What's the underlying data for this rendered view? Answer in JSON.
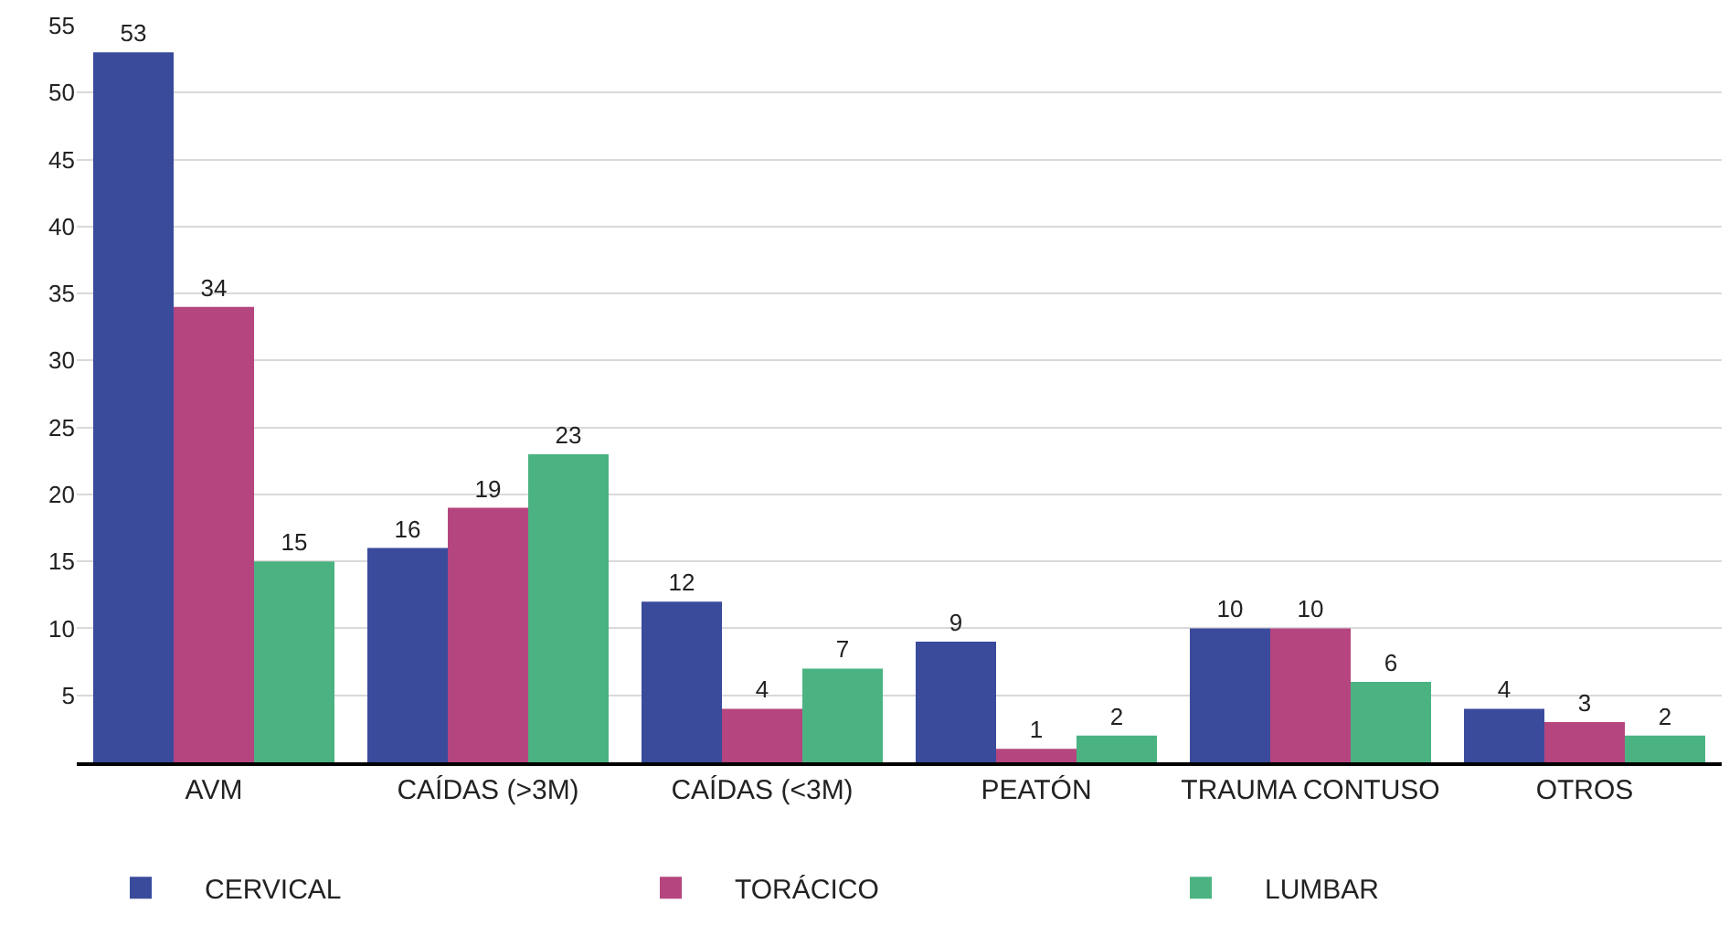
{
  "chart_data": {
    "type": "bar",
    "categories": [
      "AVM",
      "CAÍDAS (>3M)",
      "CAÍDAS (<3M)",
      "PEATÓN",
      "TRAUMA CONTUSO",
      "OTROS"
    ],
    "series": [
      {
        "name": "CERVICAL",
        "color": "#3a4b9c",
        "values": [
          53,
          16,
          12,
          9,
          10,
          4
        ]
      },
      {
        "name": "TORÁCICO",
        "color": "#b5457f",
        "values": [
          34,
          19,
          4,
          1,
          10,
          3
        ]
      },
      {
        "name": "LUMBAR",
        "color": "#4bb382",
        "values": [
          15,
          23,
          7,
          2,
          6,
          2
        ]
      }
    ],
    "ylim": [
      0,
      55
    ],
    "yticks": [
      5,
      10,
      15,
      20,
      25,
      30,
      35,
      40,
      45,
      50,
      55
    ],
    "grid": "y",
    "legend": "bottom",
    "data_labels": true
  }
}
